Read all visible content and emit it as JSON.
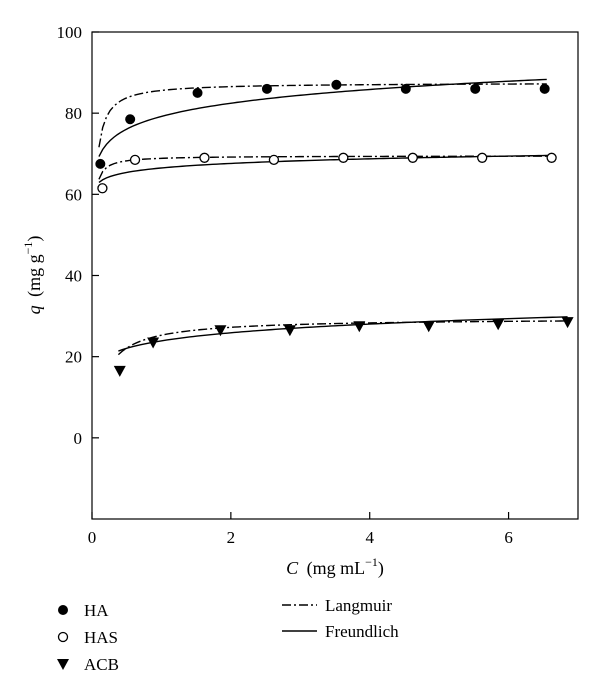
{
  "chart_data": {
    "type": "scatter",
    "xlabel_var": "C",
    "xlabel_unit": "(mg mL",
    "xlabel_sup": "−1",
    "xlabel_close": ")",
    "ylabel_var": "q",
    "ylabel_unit": "(mg g",
    "ylabel_sup": "−1",
    "ylabel_close": ")",
    "xlim": [
      0,
      7
    ],
    "ylim": [
      -20,
      100
    ],
    "xticks": [
      0,
      2,
      4,
      6
    ],
    "yticks": [
      0,
      20,
      40,
      60,
      80,
      100
    ],
    "grid": false,
    "legend_position": "bottom",
    "series": [
      {
        "name": "HA",
        "marker": "filled-circle",
        "points": [
          [
            0.12,
            67.5
          ],
          [
            0.55,
            78.5
          ],
          [
            1.52,
            85
          ],
          [
            2.52,
            86
          ],
          [
            3.52,
            87
          ],
          [
            4.52,
            86
          ],
          [
            5.52,
            86
          ],
          [
            6.52,
            86
          ]
        ]
      },
      {
        "name": "HAS",
        "marker": "open-circle",
        "points": [
          [
            0.15,
            61.5
          ],
          [
            0.62,
            68.5
          ],
          [
            1.62,
            69
          ],
          [
            2.62,
            68.5
          ],
          [
            3.62,
            69
          ],
          [
            4.62,
            69
          ],
          [
            5.62,
            69
          ],
          [
            6.62,
            69
          ]
        ]
      },
      {
        "name": "ACB",
        "marker": "filled-triangle-down",
        "points": [
          [
            0.4,
            16.5
          ],
          [
            0.88,
            23.5
          ],
          [
            1.85,
            26.5
          ],
          [
            2.85,
            26.5
          ],
          [
            3.85,
            27.5
          ],
          [
            4.85,
            27.5
          ],
          [
            5.85,
            28
          ],
          [
            6.85,
            28.5
          ]
        ]
      }
    ],
    "fits": [
      {
        "name": "Langmuir",
        "style": "dash-dot",
        "curves": [
          {
            "series": "HA",
            "qmax": 87.5,
            "KL": 45,
            "x_range": [
              0.1,
              6.55
            ]
          },
          {
            "series": "HAS",
            "qmax": 69.5,
            "KL": 110,
            "x_range": [
              0.1,
              6.65
            ]
          },
          {
            "series": "ACB",
            "qmax": 29.5,
            "KL": 6,
            "x_range": [
              0.38,
              6.85
            ]
          }
        ]
      },
      {
        "name": "Freundlich",
        "style": "solid",
        "curves": [
          {
            "series": "HA",
            "KF": 79.2,
            "n_inv": 0.058,
            "x_range": [
              0.1,
              6.55
            ]
          },
          {
            "series": "HAS",
            "KF": 66.5,
            "n_inv": 0.024,
            "x_range": [
              0.1,
              6.65
            ]
          },
          {
            "series": "ACB",
            "KF": 23.9,
            "n_inv": 0.115,
            "x_range": [
              0.38,
              6.85
            ]
          }
        ]
      }
    ],
    "legend_markers": [
      {
        "label": "HA",
        "marker": "filled-circle"
      },
      {
        "label": "HAS",
        "marker": "open-circle"
      },
      {
        "label": "ACB",
        "marker": "filled-triangle-down"
      }
    ],
    "legend_lines": [
      {
        "label": "Langmuir",
        "style": "dash-dot"
      },
      {
        "label": "Freundlich",
        "style": "solid"
      }
    ]
  }
}
